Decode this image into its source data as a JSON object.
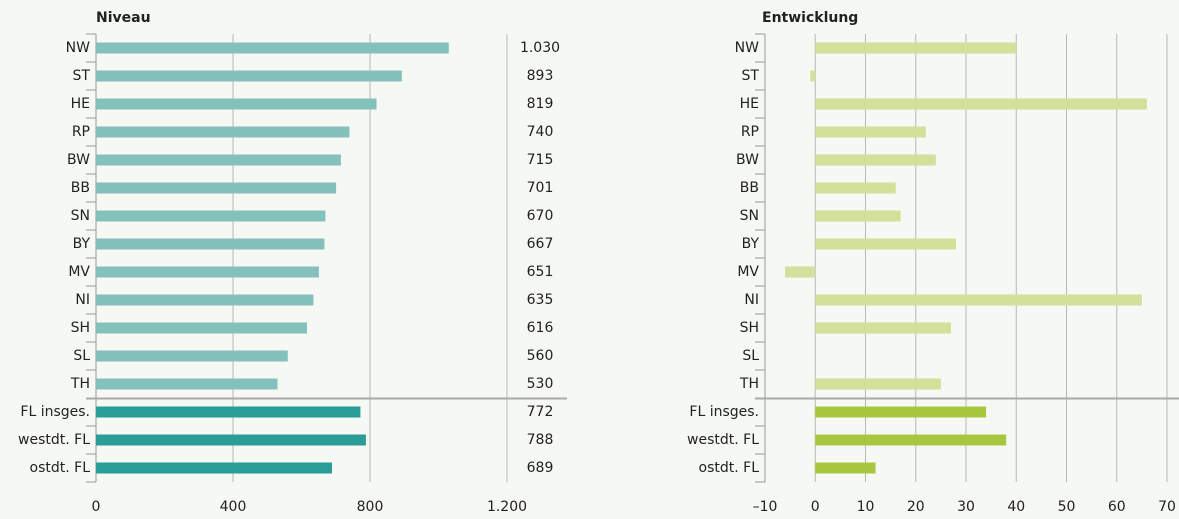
{
  "chart_data": [
    {
      "type": "hbar",
      "title": "Niveau",
      "categories": [
        "NW",
        "ST",
        "HE",
        "RP",
        "BW",
        "BB",
        "SN",
        "BY",
        "MV",
        "NI",
        "SH",
        "SL",
        "TH",
        "FL insges.",
        "westdt. FL",
        "ostdt. FL"
      ],
      "values": [
        1030,
        893,
        819,
        740,
        715,
        701,
        670,
        667,
        651,
        635,
        616,
        560,
        530,
        772,
        788,
        689
      ],
      "value_labels": [
        "1.030",
        "893",
        "819",
        "740",
        "715",
        "701",
        "670",
        "667",
        "651",
        "635",
        "616",
        "560",
        "530",
        "772",
        "788",
        "689"
      ],
      "colors": [
        "#84c1bd",
        "#84c1bd",
        "#84c1bd",
        "#84c1bd",
        "#84c1bd",
        "#84c1bd",
        "#84c1bd",
        "#84c1bd",
        "#84c1bd",
        "#84c1bd",
        "#84c1bd",
        "#84c1bd",
        "#84c1bd",
        "#2a9d96",
        "#2a9d96",
        "#2a9d96"
      ],
      "xlim": [
        0,
        1200
      ],
      "xticks": [
        0,
        400,
        800,
        {
          "value": 1200,
          "label": "1.200"
        }
      ],
      "grid": true
    },
    {
      "type": "hbar",
      "title": "Entwicklung",
      "categories": [
        "NW",
        "ST",
        "HE",
        "RP",
        "BW",
        "BB",
        "SN",
        "BY",
        "MV",
        "NI",
        "SH",
        "SL",
        "TH",
        "FL insges.",
        "westdt. FL",
        "ostdt. FL"
      ],
      "values": [
        40,
        -1,
        66,
        22,
        24,
        16,
        17,
        28,
        -6,
        65,
        27,
        0,
        25,
        34,
        38,
        12
      ],
      "colors": [
        "#d3e09a",
        "#d3e09a",
        "#d3e09a",
        "#d3e09a",
        "#d3e09a",
        "#d3e09a",
        "#d3e09a",
        "#d3e09a",
        "#d3e09a",
        "#d3e09a",
        "#d3e09a",
        "#d3e09a",
        "#d3e09a",
        "#a8c73f",
        "#a8c73f",
        "#a8c73f"
      ],
      "xlim": [
        -10,
        70
      ],
      "xticks": [
        {
          "value": -10,
          "label": "–10"
        },
        0,
        10,
        20,
        30,
        40,
        50,
        60,
        70
      ],
      "grid": true
    }
  ]
}
